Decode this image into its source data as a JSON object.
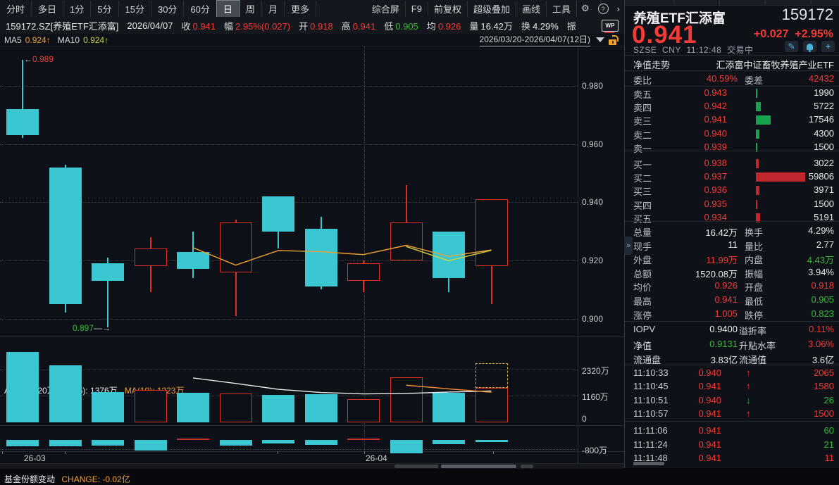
{
  "colors": {
    "red": "#f23b35",
    "green": "#33bb33",
    "white": "#e6e9ee",
    "orange": "#f0a132",
    "yellow": "#d8d23f",
    "cyan": "#3bc7d2",
    "up_border": "#dd2f23",
    "sell_bar": "#17a24e",
    "buy_bar": "#c0282d"
  },
  "toolbar": {
    "periods": [
      "分时",
      "多日",
      "1分",
      "5分",
      "15分",
      "30分",
      "60分",
      "日",
      "周",
      "月",
      "更多"
    ],
    "selected_period": "日",
    "tools": [
      "综合屏",
      "F9",
      "前复权",
      "超级叠加",
      "画线",
      "工具"
    ],
    "gear_icon": "⚙",
    "help_icon": "?",
    "chevron_icon": "›",
    "wp_icon": "WP"
  },
  "quote_bar": {
    "symbol": "159172.SZ[养殖ETF汇添富]",
    "date": "2026/04/07",
    "fields": [
      {
        "label": "收",
        "value": "0.941",
        "color": "red"
      },
      {
        "label": "幅",
        "value": "2.95%(0.027)",
        "color": "red"
      },
      {
        "label": "开",
        "value": "0.918",
        "color": "red"
      },
      {
        "label": "高",
        "value": "0.941",
        "color": "red"
      },
      {
        "label": "低",
        "value": "0.905",
        "color": "green"
      },
      {
        "label": "均",
        "value": "0.926",
        "color": "red"
      },
      {
        "label": "量",
        "value": "16.42万",
        "color": "white"
      },
      {
        "label": "换",
        "value": "4.29%",
        "color": "white"
      },
      {
        "label": "振",
        "value": "",
        "color": "white"
      }
    ]
  },
  "ma_bar": {
    "ma5_label": "MA5",
    "ma5_value": "0.924↑",
    "ma10_label": "MA10",
    "ma10_value": "0.924↑",
    "date_range": "2026/03/20-2026/04/07(12日)"
  },
  "chart_data": {
    "price_chart": {
      "type": "candlestick",
      "y_ticks": [
        "0.980",
        "0.960",
        "0.940",
        "0.920",
        "0.900"
      ],
      "y_tick_values": [
        0.98,
        0.96,
        0.94,
        0.92,
        0.9
      ],
      "high_annotation": {
        "arrow": "←",
        "text": "0.989"
      },
      "low_annotation": {
        "text": "0.897",
        "arrow": "→"
      },
      "candles": [
        {
          "o": 0.972,
          "h": 0.989,
          "l": 0.962,
          "c": 0.963
        },
        {
          "o": 0.952,
          "h": 0.953,
          "l": 0.902,
          "c": 0.905
        },
        {
          "o": 0.919,
          "h": 0.921,
          "l": 0.897,
          "c": 0.913
        },
        {
          "o": 0.918,
          "h": 0.928,
          "l": 0.909,
          "c": 0.924
        },
        {
          "o": 0.923,
          "h": 0.93,
          "l": 0.914,
          "c": 0.917
        },
        {
          "o": 0.916,
          "h": 0.934,
          "l": 0.901,
          "c": 0.933
        },
        {
          "o": 0.942,
          "h": 0.942,
          "l": 0.924,
          "c": 0.93
        },
        {
          "o": 0.931,
          "h": 0.935,
          "l": 0.91,
          "c": 0.911
        },
        {
          "o": 0.913,
          "h": 0.92,
          "l": 0.909,
          "c": 0.919
        },
        {
          "o": 0.92,
          "h": 0.946,
          "l": 0.92,
          "c": 0.933
        },
        {
          "o": 0.93,
          "h": 0.93,
          "l": 0.909,
          "c": 0.914
        },
        {
          "o": 0.918,
          "h": 0.941,
          "l": 0.905,
          "c": 0.941
        }
      ],
      "ma5": [
        0.9244,
        0.9184,
        0.9234,
        0.923,
        0.922,
        0.9252,
        0.9214,
        0.9236
      ],
      "ma10": [
        0.9248,
        0.9199,
        0.9235
      ],
      "month_gridline_x": 517
    },
    "volume_chart": {
      "type": "bar",
      "header": [
        {
          "text": "AMO: 1520万",
          "color": "white"
        },
        {
          "text": "MA(5): 1376万",
          "color": "white"
        },
        {
          "text": "MA(10): 1323万",
          "color": "orange"
        }
      ],
      "y_ticks": [
        "2320万",
        "1160万",
        "0"
      ],
      "values_wan": [
        3100,
        2500,
        1340,
        1430,
        1310,
        1280,
        1190,
        1250,
        1010,
        1980,
        1310,
        1520
      ],
      "ma5": [
        1950,
        1710,
        1450,
        1310,
        1250,
        1270,
        1330,
        1376
      ],
      "ma10": [
        1630,
        1470,
        1323
      ],
      "projection_box_on_last_bar": true
    },
    "share_chart": {
      "type": "bar",
      "title": "基金份额变动",
      "change_label": "CHANGE: -0.02亿",
      "y_tick": "-800万",
      "values_wan": [
        -550,
        -550,
        -500,
        -950,
        130,
        -500,
        -280,
        -450,
        130,
        -1150,
        -350,
        -200
      ]
    },
    "x_axis_labels": [
      {
        "text": "26-03",
        "x": 34
      },
      {
        "text": "26-04",
        "x": 519
      }
    ]
  },
  "right_panel": {
    "name": "养殖ETF汇添富",
    "code": "159172",
    "price": "0.941",
    "change": "+0.027",
    "pct": "+2.95%",
    "exchange": "SZSE",
    "currency": "CNY",
    "time": "11:12:48",
    "status": "交易中",
    "icons": [
      "edit-icon",
      "bell-icon",
      "add-icon"
    ],
    "nav_row": {
      "label": "净值走势",
      "value": "汇添富中证畜牧养殖产业ETF"
    },
    "weibi": {
      "l1": "委比",
      "v1": "40.59%",
      "l2": "委差",
      "v2": "42432"
    },
    "order_book": [
      {
        "label": "卖五",
        "price": "0.943",
        "vol": "1990",
        "volnum": 1990,
        "side": "sell"
      },
      {
        "label": "卖四",
        "price": "0.942",
        "vol": "5722",
        "volnum": 5722,
        "side": "sell"
      },
      {
        "label": "卖三",
        "price": "0.941",
        "vol": "17546",
        "volnum": 17546,
        "side": "sell"
      },
      {
        "label": "卖二",
        "price": "0.940",
        "vol": "4300",
        "volnum": 4300,
        "side": "sell"
      },
      {
        "label": "卖一",
        "price": "0.939",
        "vol": "1500",
        "volnum": 1500,
        "side": "sell"
      },
      {
        "label": "买一",
        "price": "0.938",
        "vol": "3022",
        "volnum": 3022,
        "side": "buy"
      },
      {
        "label": "买二",
        "price": "0.937",
        "vol": "59806",
        "volnum": 59806,
        "side": "buy"
      },
      {
        "label": "买三",
        "price": "0.936",
        "vol": "3971",
        "volnum": 3971,
        "side": "buy"
      },
      {
        "label": "买四",
        "price": "0.935",
        "vol": "1500",
        "volnum": 1500,
        "side": "buy"
      },
      {
        "label": "买五",
        "price": "0.934",
        "vol": "5191",
        "volnum": 5191,
        "side": "buy"
      }
    ],
    "stats": [
      {
        "l1": "总量",
        "v1": "16.42万",
        "c1": "white",
        "l2": "换手",
        "v2": "4.29%",
        "c2": "white"
      },
      {
        "l1": "现手",
        "v1": "11",
        "c1": "white",
        "l2": "量比",
        "v2": "2.77",
        "c2": "white"
      },
      {
        "l1": "外盘",
        "v1": "11.99万",
        "c1": "red",
        "l2": "内盘",
        "v2": "4.43万",
        "c2": "green"
      },
      {
        "l1": "总额",
        "v1": "1520.08万",
        "c1": "white",
        "l2": "振幅",
        "v2": "3.94%",
        "c2": "white"
      },
      {
        "l1": "均价",
        "v1": "0.926",
        "c1": "red",
        "l2": "开盘",
        "v2": "0.918",
        "c2": "red"
      },
      {
        "l1": "最高",
        "v1": "0.941",
        "c1": "red",
        "l2": "最低",
        "v2": "0.905",
        "c2": "green"
      },
      {
        "l1": "涨停",
        "v1": "1.005",
        "c1": "red",
        "l2": "跌停",
        "v2": "0.823",
        "c2": "green"
      }
    ],
    "iopv_rows": [
      {
        "l1": "IOPV",
        "v1": "0.9400",
        "c1": "white",
        "l2": "溢折率",
        "v2": "0.11%",
        "c2": "red"
      },
      {
        "l1": "净值",
        "v1": "0.9131",
        "c1": "green",
        "l2": "升贴水率",
        "v2": "3.06%",
        "c2": "red"
      },
      {
        "l1": "流通盘",
        "v1": "3.83亿",
        "c1": "white",
        "l2": "流通值",
        "v2": "3.6亿",
        "c2": "white"
      }
    ],
    "ticks": [
      {
        "time": "11:10:33",
        "price": "0.940",
        "dir": "up",
        "vol": "2065",
        "vc": "red"
      },
      {
        "time": "11:10:45",
        "price": "0.941",
        "dir": "up",
        "vol": "1580",
        "vc": "red"
      },
      {
        "time": "11:10:51",
        "price": "0.940",
        "dir": "down",
        "vol": "26",
        "vc": "green"
      },
      {
        "time": "11:10:57",
        "price": "0.941",
        "dir": "up",
        "vol": "1500",
        "vc": "red"
      },
      {
        "time": "11:11:06",
        "price": "0.941",
        "dir": "",
        "vol": "60",
        "vc": "green"
      },
      {
        "time": "11:11:24",
        "price": "0.941",
        "dir": "",
        "vol": "21",
        "vc": "green"
      },
      {
        "time": "11:11:48",
        "price": "0.941",
        "dir": "",
        "vol": "11",
        "vc": "red"
      }
    ],
    "collapse_icon": "»"
  }
}
